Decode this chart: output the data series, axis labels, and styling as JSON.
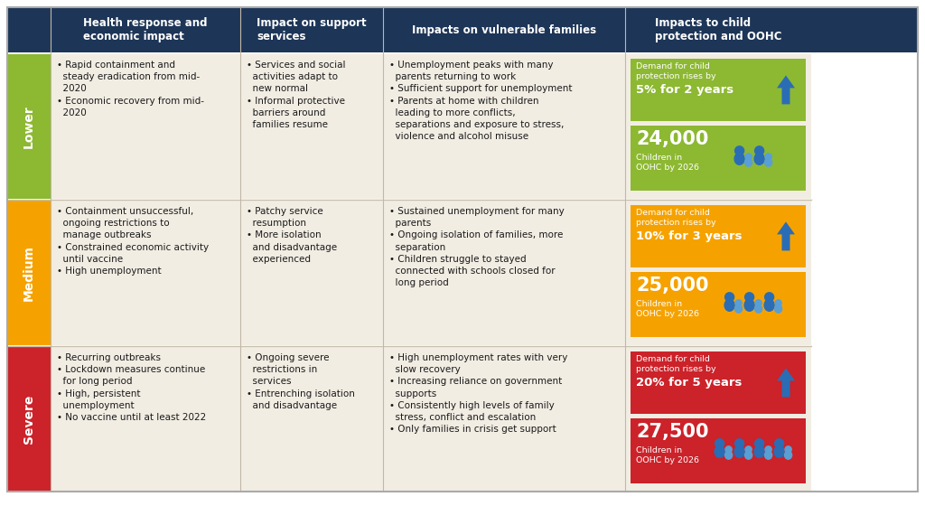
{
  "title_row": [
    "Health response and\neconomic impact",
    "Impact on support\nservices",
    "Impacts on vulnerable families",
    "Impacts to child\nprotection and OOHC"
  ],
  "scenarios": [
    "Lower",
    "Medium",
    "Severe"
  ],
  "scenario_colors": [
    "#8db832",
    "#f5a200",
    "#cc2229"
  ],
  "col1": [
    "• Rapid containment and\n  steady eradication from mid-\n  2020\n• Economic recovery from mid-\n  2020",
    "• Containment unsuccessful,\n  ongoing restrictions to\n  manage outbreaks\n• Constrained economic activity\n  until vaccine\n• High unemployment",
    "• Recurring outbreaks\n• Lockdown measures continue\n  for long period\n• High, persistent\n  unemployment\n• No vaccine until at least 2022"
  ],
  "col2": [
    "• Services and social\n  activities adapt to\n  new normal\n• Informal protective\n  barriers around\n  families resume",
    "• Patchy service\n  resumption\n• More isolation\n  and disadvantage\n  experienced",
    "• Ongoing severe\n  restrictions in\n  services\n• Entrenching isolation\n  and disadvantage"
  ],
  "col3": [
    "• Unemployment peaks with many\n  parents returning to work\n• Sufficient support for unemployment\n• Parents at home with children\n  leading to more conflicts,\n  separations and exposure to stress,\n  violence and alcohol misuse",
    "• Sustained unemployment for many\n  parents\n• Ongoing isolation of families, more\n  separation\n• Children struggle to stayed\n  connected with schools closed for\n  long period",
    "• High unemployment rates with very\n  slow recovery\n• Increasing reliance on government\n  supports\n• Consistently high levels of family\n  stress, conflict and escalation\n• Only families in crisis get support"
  ],
  "demand_text": [
    "5% for 2 years",
    "10% for 3 years",
    "20% for 5 years"
  ],
  "children_text": [
    "24,000",
    "25,000",
    "27,500"
  ],
  "header_bg": "#1d3557",
  "header_fg": "#ffffff",
  "row_bg": "#f2ede3",
  "demand_label": "Demand for child\nprotection rises by",
  "children_label": "Children in\nOOHC by 2026",
  "arrow_color": "#2a6db5",
  "icon_dark": "#2a6db5",
  "icon_light": "#5a9fd4"
}
